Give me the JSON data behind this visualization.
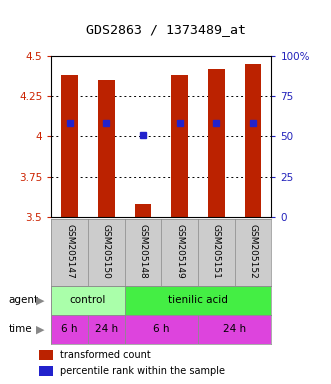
{
  "title": "GDS2863 / 1373489_at",
  "samples": [
    "GSM205147",
    "GSM205150",
    "GSM205148",
    "GSM205149",
    "GSM205151",
    "GSM205152"
  ],
  "bar_values": [
    4.38,
    4.35,
    3.58,
    4.38,
    4.42,
    4.45
  ],
  "bar_bottom": 3.5,
  "percentile_values": [
    4.08,
    4.08,
    4.01,
    4.08,
    4.08,
    4.08
  ],
  "ylim": [
    3.5,
    4.5
  ],
  "yticks": [
    3.5,
    3.75,
    4.0,
    4.25,
    4.5
  ],
  "ytick_labels": [
    "3.5",
    "3.75",
    "4",
    "4.25",
    "4.5"
  ],
  "right_ytick_pcts": [
    0,
    25,
    50,
    75,
    100
  ],
  "right_ytick_labels": [
    "0",
    "25",
    "50",
    "75",
    "100%"
  ],
  "bar_color": "#bb2200",
  "percentile_color": "#2222cc",
  "agent_data": [
    [
      "control",
      0,
      2,
      "#aaffaa"
    ],
    [
      "tienilic acid",
      2,
      6,
      "#44ee44"
    ]
  ],
  "time_data": [
    [
      "6 h",
      0,
      1
    ],
    [
      "24 h",
      1,
      2
    ],
    [
      "6 h",
      2,
      4
    ],
    [
      "24 h",
      4,
      6
    ]
  ],
  "time_color": "#dd44dd",
  "header_bg": "#cccccc",
  "left_label_color": "#cc2200",
  "right_label_color": "#2222bb",
  "bar_width": 0.45
}
